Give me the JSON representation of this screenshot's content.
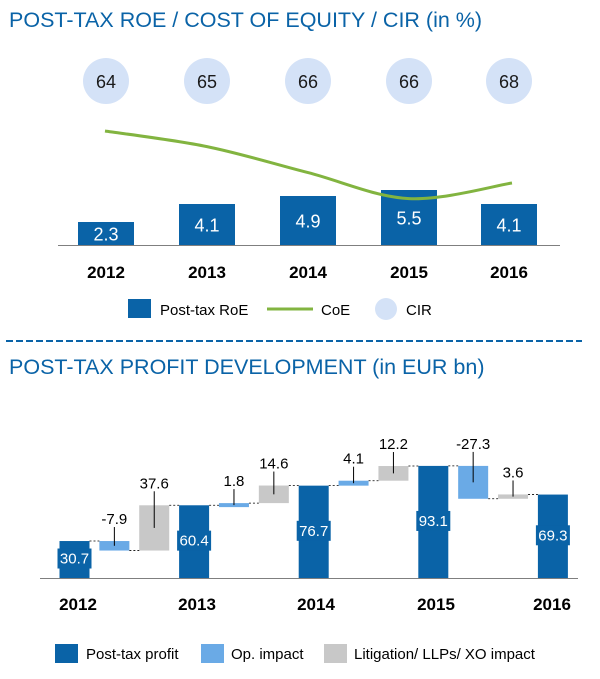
{
  "chart_data": [
    {
      "type": "bar",
      "title": "POST-TAX ROE / COST OF EQUITY / CIR (in %)",
      "categories": [
        "2012",
        "2013",
        "2014",
        "2015",
        "2016"
      ],
      "series": [
        {
          "name": "Post-tax RoE",
          "kind": "bar",
          "color": "#0a63a7",
          "values": [
            2.3,
            4.1,
            4.9,
            5.5,
            4.1
          ]
        },
        {
          "name": "CoE",
          "kind": "line",
          "color": "#82b440",
          "values": [
            10.8,
            10.5,
            10.0,
            9.5,
            9.8
          ]
        },
        {
          "name": "CIR",
          "kind": "bubble",
          "color": "#d4e2f7",
          "values": [
            64,
            65,
            66,
            66,
            68
          ]
        }
      ],
      "legend_position": "bottom"
    },
    {
      "type": "bar",
      "subtype": "waterfall",
      "title": "POST-TAX PROFIT DEVELOPMENT (in EUR bn)",
      "categories": [
        "2012",
        "2013",
        "2014",
        "2015",
        "2016"
      ],
      "steps": [
        {
          "kind": "total",
          "series": "Post-tax profit",
          "value": 30.7,
          "label": "30.7"
        },
        {
          "kind": "delta",
          "series": "Op. impact",
          "value": -7.9,
          "label": "-7.9"
        },
        {
          "kind": "delta",
          "series": "Litigation/ LLPs/ XO impact",
          "value": 37.6,
          "label": "37.6"
        },
        {
          "kind": "total",
          "series": "Post-tax profit",
          "value": 60.4,
          "label": "60.4"
        },
        {
          "kind": "delta",
          "series": "Op. impact",
          "value": 1.8,
          "label": "1.8"
        },
        {
          "kind": "delta",
          "series": "Litigation/ LLPs/ XO impact",
          "value": 14.6,
          "label": "14.6"
        },
        {
          "kind": "total",
          "series": "Post-tax profit",
          "value": 76.7,
          "label": "76.7"
        },
        {
          "kind": "delta",
          "series": "Op. impact",
          "value": 4.1,
          "label": "4.1"
        },
        {
          "kind": "delta",
          "series": "Litigation/ LLPs/ XO impact",
          "value": 12.2,
          "label": "12.2"
        },
        {
          "kind": "total",
          "series": "Post-tax profit",
          "value": 93.1,
          "label": "93.1"
        },
        {
          "kind": "delta",
          "series": "Op. impact",
          "value": -27.3,
          "label": "-27.3"
        },
        {
          "kind": "delta",
          "series": "Litigation/ LLPs/ XO impact",
          "value": 3.6,
          "label": "3.6"
        },
        {
          "kind": "total",
          "series": "Post-tax profit",
          "value": 69.3,
          "label": "69.3"
        }
      ],
      "legend": [
        {
          "name": "Post-tax profit",
          "color": "#0a63a7"
        },
        {
          "name": "Op. impact",
          "color": "#6aaae6"
        },
        {
          "name": "Litigation/ LLPs/ XO impact",
          "color": "#c8c8c8"
        }
      ],
      "legend_position": "bottom"
    }
  ]
}
